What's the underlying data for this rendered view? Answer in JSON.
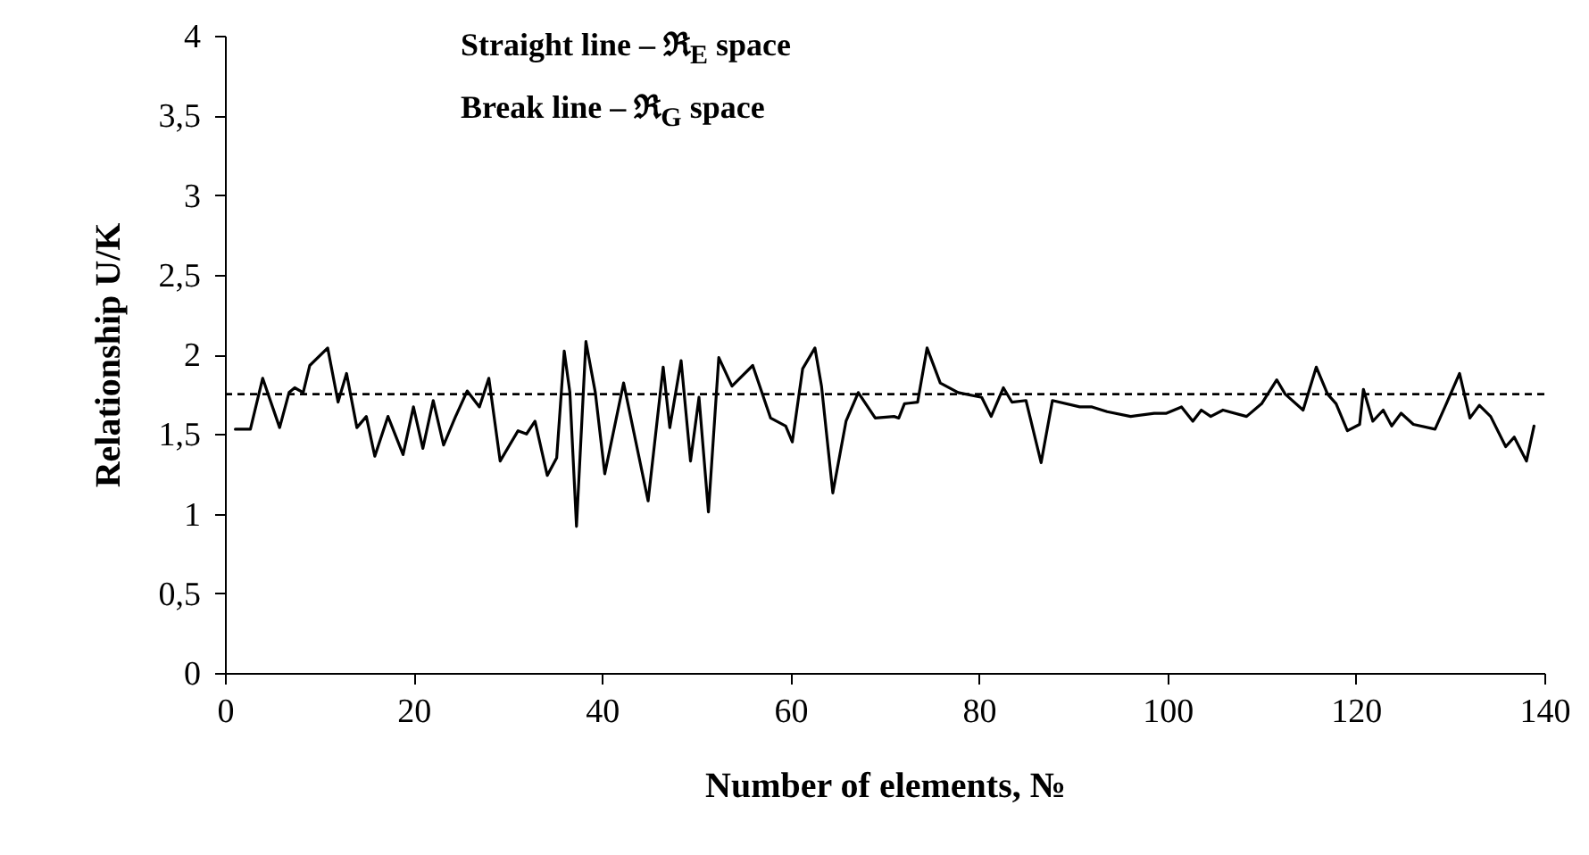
{
  "chart_data": {
    "type": "line",
    "xlabel": "Number of elements, №",
    "ylabel": "Relationship U/K",
    "annotations": [
      "Straight line – ℜ$_{E}$ space",
      "Break line – ℜ$_{G}$ space"
    ],
    "xlim": [
      0,
      140
    ],
    "xticks": [
      0,
      20,
      40,
      60,
      80,
      100,
      120,
      140
    ],
    "ylim": [
      0,
      4
    ],
    "yticks": [
      0,
      {
        "value": 0.5,
        "label": "0,5"
      },
      1,
      {
        "value": 1.5,
        "label": "1,5"
      },
      2,
      {
        "value": 2.5,
        "label": "2,5"
      },
      3,
      {
        "value": 3.5,
        "label": "3,5"
      },
      4
    ],
    "grid": false,
    "ref_lines": [
      {
        "axis": "y",
        "value": 1.75,
        "color": "#000000",
        "line_style": "dashed"
      }
    ],
    "series": [
      {
        "color": "#000000",
        "x": [
          1.1,
          2.7,
          4.0,
          5.8,
          6.8,
          7.4,
          8.3,
          9.0,
          10.9,
          12.0,
          12.9,
          14.0,
          15.0,
          15.9,
          17.3,
          18.9,
          20.0,
          21.0,
          22.1,
          23.2,
          24.4,
          25.7,
          27.0,
          28.0,
          29.2,
          31.1,
          32.0,
          32.9,
          34.2,
          35.2,
          36.0,
          36.6,
          37.3,
          38.3,
          39.3,
          40.3,
          42.3,
          44.9,
          46.5,
          47.2,
          48.4,
          49.4,
          50.3,
          51.3,
          52.4,
          53.8,
          56.0,
          57.9,
          59.5,
          60.2,
          61.3,
          62.6,
          63.3,
          64.5,
          65.9,
          67.2,
          69.0,
          71.0,
          71.5,
          72.1,
          73.5,
          74.5,
          75.9,
          77.8,
          80.3,
          81.3,
          82.6,
          83.5,
          85.0,
          86.6,
          87.8,
          90.7,
          92.0,
          93.6,
          96.1,
          98.6,
          99.9,
          101.5,
          102.7,
          103.6,
          104.6,
          105.9,
          108.4,
          110.0,
          111.6,
          112.5,
          114.4,
          115.8,
          117.0,
          117.9,
          119.1,
          120.4,
          120.8,
          121.8,
          122.9,
          123.8,
          124.8,
          126.1,
          128.4,
          129.6,
          131.0,
          132.1,
          133.1,
          134.3,
          135.9,
          136.8,
          138.1,
          138.9
        ],
        "values": [
          1.53,
          1.53,
          1.85,
          1.54,
          1.76,
          1.79,
          1.76,
          1.93,
          2.04,
          1.7,
          1.88,
          1.54,
          1.61,
          1.36,
          1.61,
          1.37,
          1.67,
          1.41,
          1.71,
          1.43,
          1.6,
          1.77,
          1.67,
          1.85,
          1.33,
          1.52,
          1.5,
          1.58,
          1.24,
          1.35,
          2.02,
          1.76,
          0.92,
          2.08,
          1.76,
          1.25,
          1.82,
          1.08,
          1.92,
          1.54,
          1.96,
          1.33,
          1.73,
          1.01,
          1.98,
          1.8,
          1.93,
          1.6,
          1.55,
          1.45,
          1.91,
          2.04,
          1.8,
          1.13,
          1.58,
          1.76,
          1.6,
          1.61,
          1.6,
          1.69,
          1.7,
          2.04,
          1.82,
          1.76,
          1.73,
          1.61,
          1.79,
          1.7,
          1.71,
          1.32,
          1.71,
          1.67,
          1.67,
          1.64,
          1.61,
          1.63,
          1.63,
          1.67,
          1.58,
          1.65,
          1.61,
          1.65,
          1.61,
          1.69,
          1.84,
          1.75,
          1.65,
          1.92,
          1.75,
          1.69,
          1.52,
          1.56,
          1.78,
          1.58,
          1.65,
          1.55,
          1.63,
          1.56,
          1.53,
          1.69,
          1.88,
          1.6,
          1.68,
          1.61,
          1.42,
          1.48,
          1.33,
          1.55
        ]
      }
    ]
  }
}
